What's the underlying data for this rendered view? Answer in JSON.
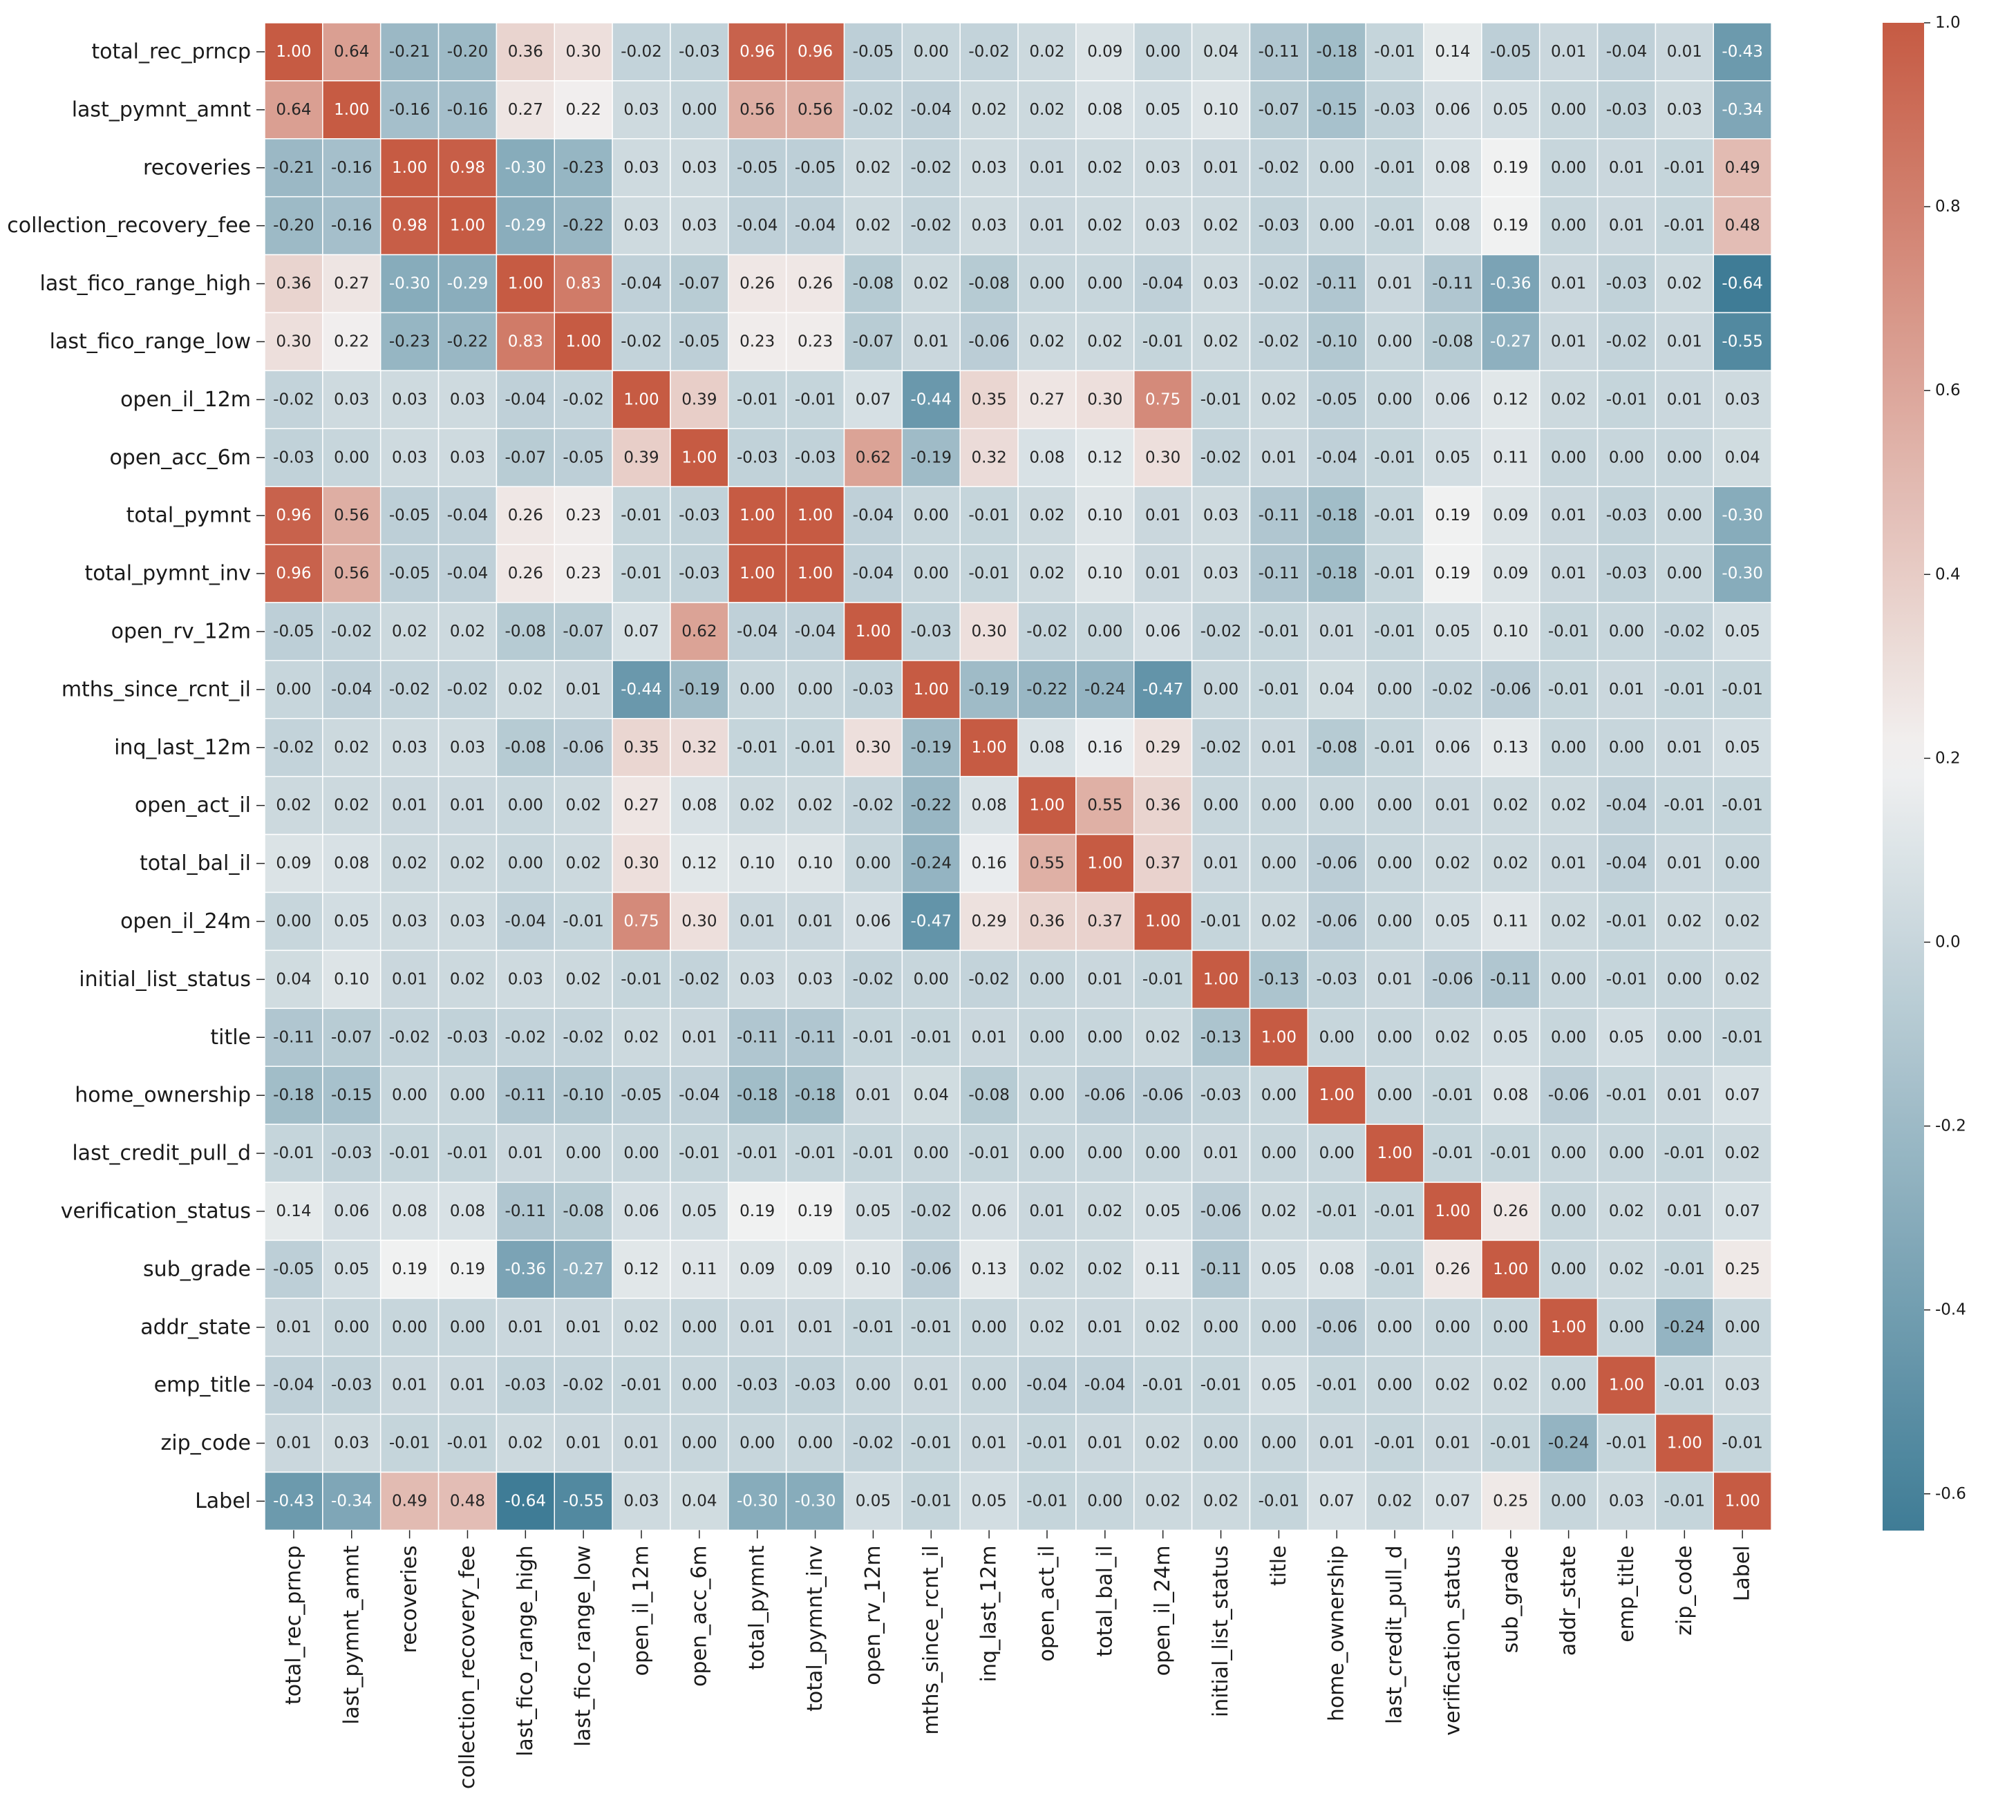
{
  "chart_data": {
    "type": "heatmap",
    "title": "",
    "xlabel": "",
    "ylabel": "",
    "labels": [
      "total_rec_prncp",
      "last_pymnt_amnt",
      "recoveries",
      "collection_recovery_fee",
      "last_fico_range_high",
      "last_fico_range_low",
      "open_il_12m",
      "open_acc_6m",
      "total_pymnt",
      "total_pymnt_inv",
      "open_rv_12m",
      "mths_since_rcnt_il",
      "inq_last_12m",
      "open_act_il",
      "total_bal_il",
      "open_il_24m",
      "initial_list_status",
      "title",
      "home_ownership",
      "last_credit_pull_d",
      "verification_status",
      "sub_grade",
      "addr_state",
      "emp_title",
      "zip_code",
      "Label"
    ],
    "values": [
      [
        1.0,
        0.64,
        -0.21,
        -0.2,
        0.36,
        0.3,
        -0.02,
        -0.03,
        0.96,
        0.96,
        -0.05,
        0.0,
        -0.02,
        0.02,
        0.09,
        -0.0,
        0.04,
        -0.11,
        -0.18,
        -0.01,
        0.14,
        -0.05,
        0.01,
        -0.04,
        0.01,
        -0.43
      ],
      [
        0.64,
        1.0,
        -0.16,
        -0.16,
        0.27,
        0.22,
        0.03,
        0.0,
        0.56,
        0.56,
        -0.02,
        -0.04,
        0.02,
        0.02,
        0.08,
        0.05,
        0.1,
        -0.07,
        -0.15,
        -0.03,
        0.06,
        0.05,
        -0.0,
        -0.03,
        0.03,
        -0.34
      ],
      [
        -0.21,
        -0.16,
        1.0,
        0.98,
        -0.3,
        -0.23,
        0.03,
        0.03,
        -0.05,
        -0.05,
        0.02,
        -0.02,
        0.03,
        0.01,
        0.02,
        0.03,
        0.01,
        -0.02,
        -0.0,
        -0.01,
        0.08,
        0.19,
        0.0,
        0.01,
        -0.01,
        0.49
      ],
      [
        -0.2,
        -0.16,
        0.98,
        1.0,
        -0.29,
        -0.22,
        0.03,
        0.03,
        -0.04,
        -0.04,
        0.02,
        -0.02,
        0.03,
        0.01,
        0.02,
        0.03,
        0.02,
        -0.03,
        -0.0,
        -0.01,
        0.08,
        0.19,
        0.0,
        0.01,
        -0.01,
        0.48
      ],
      [
        0.36,
        0.27,
        -0.3,
        -0.29,
        1.0,
        0.83,
        -0.04,
        -0.07,
        0.26,
        0.26,
        -0.08,
        0.02,
        -0.08,
        0.0,
        0.0,
        -0.04,
        0.03,
        -0.02,
        -0.11,
        0.01,
        -0.11,
        -0.36,
        0.01,
        -0.03,
        0.02,
        -0.64
      ],
      [
        0.3,
        0.22,
        -0.23,
        -0.22,
        0.83,
        1.0,
        -0.02,
        -0.05,
        0.23,
        0.23,
        -0.07,
        0.01,
        -0.06,
        0.02,
        0.02,
        -0.01,
        0.02,
        -0.02,
        -0.1,
        0.0,
        -0.08,
        -0.27,
        0.01,
        -0.02,
        0.01,
        -0.55
      ],
      [
        -0.02,
        0.03,
        0.03,
        0.03,
        -0.04,
        -0.02,
        1.0,
        0.39,
        -0.01,
        -0.01,
        0.07,
        -0.44,
        0.35,
        0.27,
        0.3,
        0.75,
        -0.01,
        0.02,
        -0.05,
        -0.0,
        0.06,
        0.12,
        0.02,
        -0.01,
        0.01,
        0.03
      ],
      [
        -0.03,
        0.0,
        0.03,
        0.03,
        -0.07,
        -0.05,
        0.39,
        1.0,
        -0.03,
        -0.03,
        0.62,
        -0.19,
        0.32,
        0.08,
        0.12,
        0.3,
        -0.02,
        0.01,
        -0.04,
        -0.01,
        0.05,
        0.11,
        0.0,
        -0.0,
        -0.0,
        0.04
      ],
      [
        0.96,
        0.56,
        -0.05,
        -0.04,
        0.26,
        0.23,
        -0.01,
        -0.03,
        1.0,
        1.0,
        -0.04,
        -0.0,
        -0.01,
        0.02,
        0.1,
        0.01,
        0.03,
        -0.11,
        -0.18,
        -0.01,
        0.19,
        0.09,
        0.01,
        -0.03,
        0.0,
        -0.3
      ],
      [
        0.96,
        0.56,
        -0.05,
        -0.04,
        0.26,
        0.23,
        -0.01,
        -0.03,
        1.0,
        1.0,
        -0.04,
        -0.0,
        -0.01,
        0.02,
        0.1,
        0.01,
        0.03,
        -0.11,
        -0.18,
        -0.01,
        0.19,
        0.09,
        0.01,
        -0.03,
        0.0,
        -0.3
      ],
      [
        -0.05,
        -0.02,
        0.02,
        0.02,
        -0.08,
        -0.07,
        0.07,
        0.62,
        -0.04,
        -0.04,
        1.0,
        -0.03,
        0.3,
        -0.02,
        -0.0,
        0.06,
        -0.02,
        -0.01,
        0.01,
        -0.01,
        0.05,
        0.1,
        -0.01,
        0.0,
        -0.02,
        0.05
      ],
      [
        0.0,
        -0.04,
        -0.02,
        -0.02,
        0.02,
        0.01,
        -0.44,
        -0.19,
        -0.0,
        -0.0,
        -0.03,
        1.0,
        -0.19,
        -0.22,
        -0.24,
        -0.47,
        0.0,
        -0.01,
        0.04,
        -0.0,
        -0.02,
        -0.06,
        -0.01,
        0.01,
        -0.01,
        -0.01
      ],
      [
        -0.02,
        0.02,
        0.03,
        0.03,
        -0.08,
        -0.06,
        0.35,
        0.32,
        -0.01,
        -0.01,
        0.3,
        -0.19,
        1.0,
        0.08,
        0.16,
        0.29,
        -0.02,
        0.01,
        -0.08,
        -0.01,
        0.06,
        0.13,
        -0.0,
        0.0,
        0.01,
        0.05
      ],
      [
        0.02,
        0.02,
        0.01,
        0.01,
        0.0,
        0.02,
        0.27,
        0.08,
        0.02,
        0.02,
        -0.02,
        -0.22,
        0.08,
        1.0,
        0.55,
        0.36,
        0.0,
        -0.0,
        0.0,
        0.0,
        0.01,
        0.02,
        0.02,
        -0.04,
        -0.01,
        -0.01
      ],
      [
        0.09,
        0.08,
        0.02,
        0.02,
        0.0,
        0.02,
        0.3,
        0.12,
        0.1,
        0.1,
        -0.0,
        -0.24,
        0.16,
        0.55,
        1.0,
        0.37,
        0.01,
        -0.0,
        -0.06,
        -0.0,
        0.02,
        0.02,
        0.01,
        -0.04,
        0.01,
        -0.0
      ],
      [
        -0.0,
        0.05,
        0.03,
        0.03,
        -0.04,
        -0.01,
        0.75,
        0.3,
        0.01,
        0.01,
        0.06,
        -0.47,
        0.29,
        0.36,
        0.37,
        1.0,
        -0.01,
        0.02,
        -0.06,
        -0.0,
        0.05,
        0.11,
        0.02,
        -0.01,
        0.02,
        0.02
      ],
      [
        0.04,
        0.1,
        0.01,
        0.02,
        0.03,
        0.02,
        -0.01,
        -0.02,
        0.03,
        0.03,
        -0.02,
        0.0,
        -0.02,
        0.0,
        0.01,
        -0.01,
        1.0,
        -0.13,
        -0.03,
        0.01,
        -0.06,
        -0.11,
        0.0,
        -0.01,
        -0.0,
        0.02
      ],
      [
        -0.11,
        -0.07,
        -0.02,
        -0.03,
        -0.02,
        -0.02,
        0.02,
        0.01,
        -0.11,
        -0.11,
        -0.01,
        -0.01,
        0.01,
        -0.0,
        -0.0,
        0.02,
        -0.13,
        1.0,
        0.0,
        -0.0,
        0.02,
        0.05,
        -0.0,
        0.05,
        -0.0,
        -0.01
      ],
      [
        -0.18,
        -0.15,
        -0.0,
        -0.0,
        -0.11,
        -0.1,
        -0.05,
        -0.04,
        -0.18,
        -0.18,
        0.01,
        0.04,
        -0.08,
        0.0,
        -0.06,
        -0.06,
        -0.03,
        0.0,
        1.0,
        0.0,
        -0.01,
        0.08,
        -0.06,
        -0.01,
        0.01,
        0.07
      ],
      [
        -0.01,
        -0.03,
        -0.01,
        -0.01,
        0.01,
        0.0,
        -0.0,
        -0.01,
        -0.01,
        -0.01,
        -0.01,
        -0.0,
        -0.01,
        0.0,
        -0.0,
        -0.0,
        0.01,
        -0.0,
        0.0,
        1.0,
        -0.01,
        -0.01,
        0.0,
        -0.0,
        -0.01,
        0.02
      ],
      [
        0.14,
        0.06,
        0.08,
        0.08,
        -0.11,
        -0.08,
        0.06,
        0.05,
        0.19,
        0.19,
        0.05,
        -0.02,
        0.06,
        0.01,
        0.02,
        0.05,
        -0.06,
        0.02,
        -0.01,
        -0.01,
        1.0,
        0.26,
        0.0,
        0.02,
        0.01,
        0.07
      ],
      [
        -0.05,
        0.05,
        0.19,
        0.19,
        -0.36,
        -0.27,
        0.12,
        0.11,
        0.09,
        0.09,
        0.1,
        -0.06,
        0.13,
        0.02,
        0.02,
        0.11,
        -0.11,
        0.05,
        0.08,
        -0.01,
        0.26,
        1.0,
        0.0,
        0.02,
        -0.01,
        0.25
      ],
      [
        0.01,
        -0.0,
        0.0,
        0.0,
        0.01,
        0.01,
        0.02,
        0.0,
        0.01,
        0.01,
        -0.01,
        -0.01,
        -0.0,
        0.02,
        0.01,
        0.02,
        0.0,
        -0.0,
        -0.06,
        0.0,
        0.0,
        0.0,
        1.0,
        0.0,
        -0.24,
        -0.0
      ],
      [
        -0.04,
        -0.03,
        0.01,
        0.01,
        -0.03,
        -0.02,
        -0.01,
        -0.0,
        -0.03,
        -0.03,
        0.0,
        0.01,
        0.0,
        -0.04,
        -0.04,
        -0.01,
        -0.01,
        0.05,
        -0.01,
        -0.0,
        0.02,
        0.02,
        0.0,
        1.0,
        -0.01,
        0.03
      ],
      [
        0.01,
        0.03,
        -0.01,
        -0.01,
        0.02,
        0.01,
        0.01,
        -0.0,
        0.0,
        0.0,
        -0.02,
        -0.01,
        0.01,
        -0.01,
        0.01,
        0.02,
        -0.0,
        -0.0,
        0.01,
        -0.01,
        0.01,
        -0.01,
        -0.24,
        -0.01,
        1.0,
        -0.01
      ],
      [
        -0.43,
        -0.34,
        0.49,
        0.48,
        -0.64,
        -0.55,
        0.03,
        0.04,
        -0.3,
        -0.3,
        0.05,
        -0.01,
        0.05,
        -0.01,
        -0.0,
        0.02,
        0.02,
        -0.01,
        0.07,
        0.02,
        0.07,
        0.25,
        -0.0,
        0.03,
        -0.01,
        1.0
      ]
    ],
    "colorbar": {
      "vmin": -0.64,
      "vmax": 1.0,
      "center": 0.2,
      "ticks": [
        -0.6,
        -0.4,
        -0.2,
        0.0,
        0.2,
        0.4,
        0.6,
        0.8,
        1.0
      ],
      "tick_labels": [
        "-0.6",
        "-0.4",
        "-0.2",
        "0.0",
        "0.2",
        "0.4",
        "0.6",
        "0.8",
        "1.0"
      ]
    },
    "colors": {
      "negative": "#3f7c96",
      "center": "#f2f2f2",
      "positive": "#c4533a",
      "cell_border": "#ffffff",
      "text_dark": "#262626",
      "text_light": "#ffffff"
    }
  }
}
